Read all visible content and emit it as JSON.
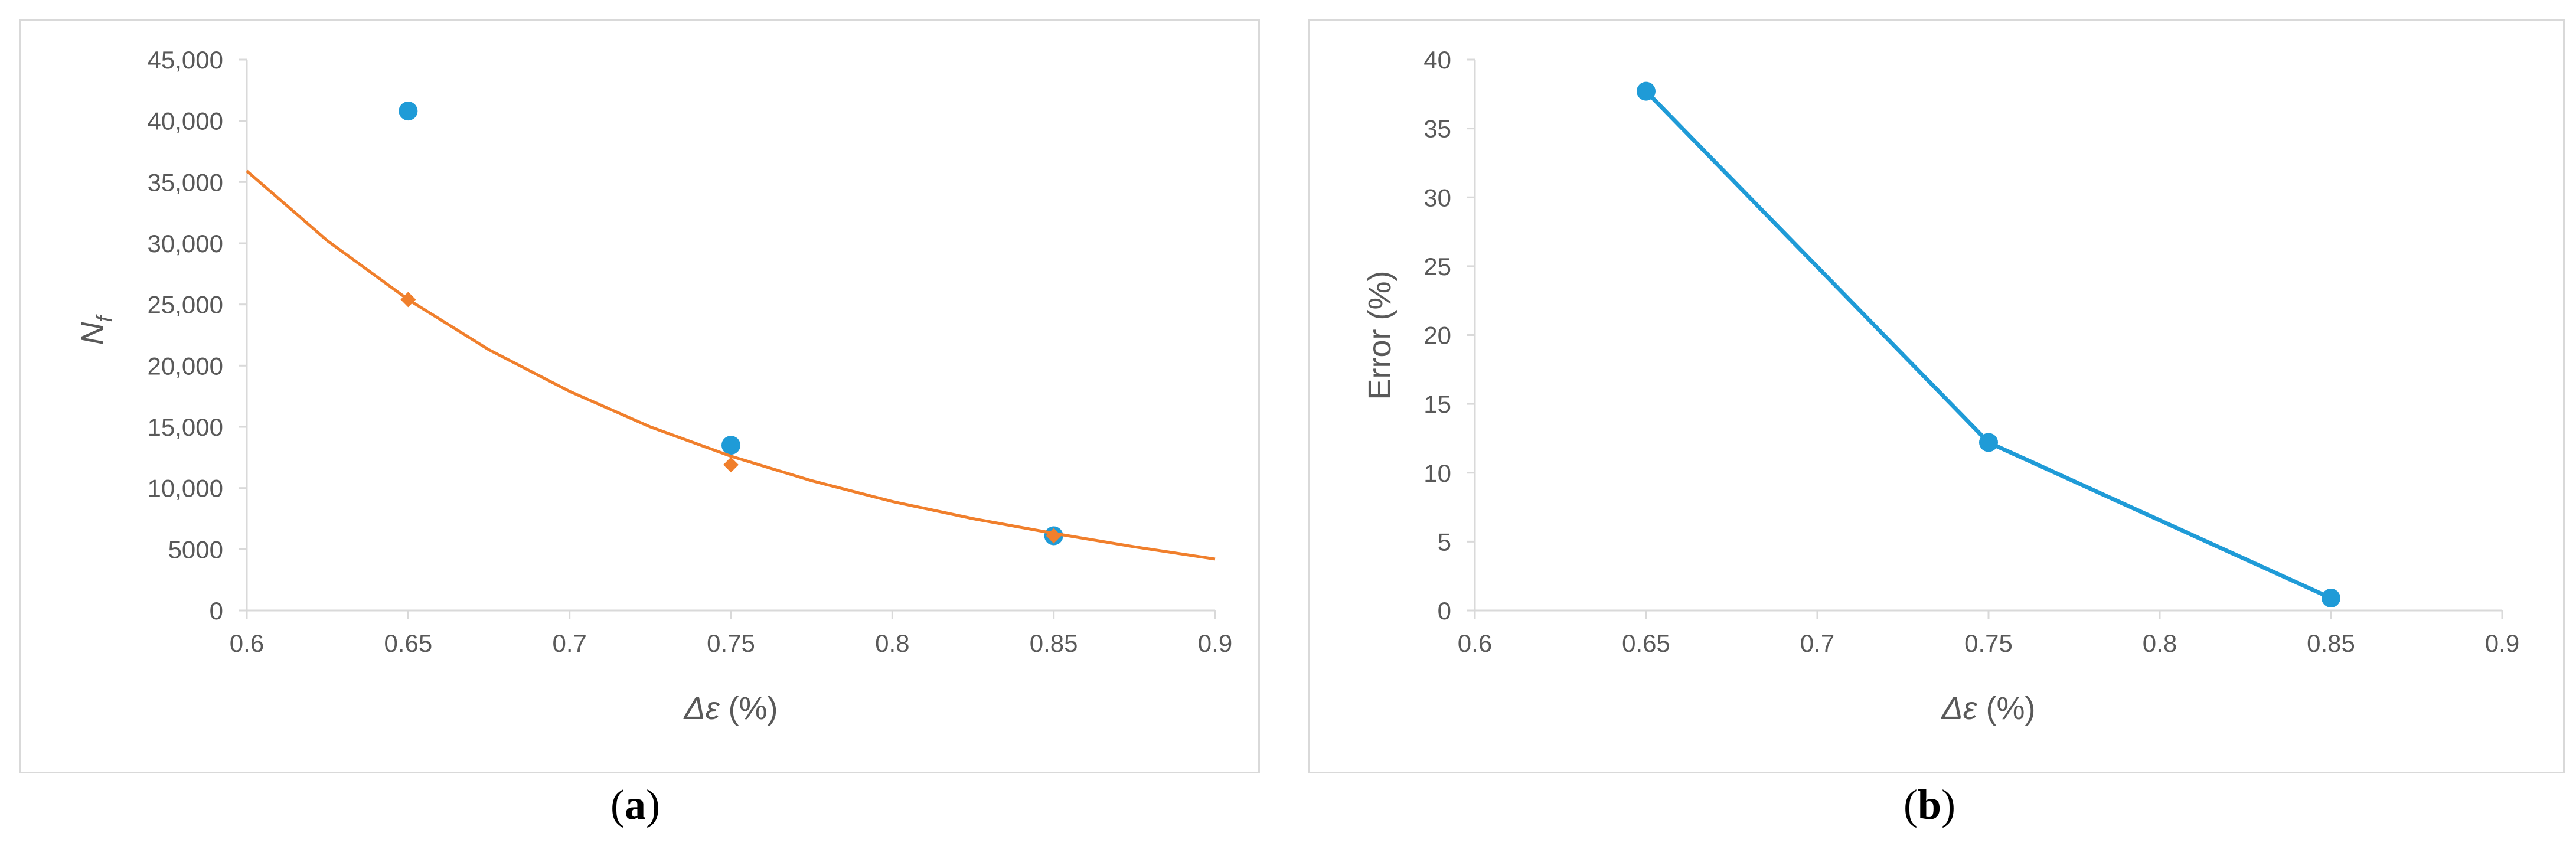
{
  "chart_data": [
    {
      "type": "scatter",
      "panel_label": "a",
      "xlabel_symbol": "Δε",
      "xlabel_unit": " (%)",
      "ylabel_main": "N",
      "ylabel_sub": "f",
      "xlim": [
        0.6,
        0.9
      ],
      "ylim": [
        0,
        45000
      ],
      "x_ticks": [
        0.6,
        0.65,
        0.7,
        0.75,
        0.8,
        0.85,
        0.9
      ],
      "x_tick_labels": [
        "0.6",
        "0.65",
        "0.7",
        "0.75",
        "0.8",
        "0.85",
        "0.9"
      ],
      "y_ticks": [
        0,
        5000,
        10000,
        15000,
        20000,
        25000,
        30000,
        35000,
        40000,
        45000
      ],
      "y_tick_labels": [
        "0",
        "5000",
        "10,000",
        "15,000",
        "20,000",
        "25,000",
        "30,000",
        "35,000",
        "40,000",
        "45,000"
      ],
      "series": [
        {
          "marker": "circle",
          "color": "#1f9bd7",
          "x": [
            0.65,
            0.75,
            0.85
          ],
          "y": [
            40800,
            13500,
            6100
          ]
        },
        {
          "marker": "diamond",
          "color": "#f07f2c",
          "x": [
            0.65,
            0.75,
            0.85
          ],
          "y": [
            25400,
            11900,
            6100
          ]
        },
        {
          "type": "curve",
          "color": "#f07f2c",
          "x": [
            0.6,
            0.625,
            0.65,
            0.675,
            0.7,
            0.725,
            0.75,
            0.775,
            0.8,
            0.825,
            0.85,
            0.875,
            0.9
          ],
          "y": [
            35900,
            30200,
            25400,
            21300,
            17900,
            15000,
            12600,
            10600,
            8900,
            7500,
            6300,
            5200,
            4200
          ]
        }
      ],
      "grid": false,
      "legend": "none"
    },
    {
      "type": "line",
      "panel_label": "b",
      "xlabel_symbol": "Δε",
      "xlabel_unit": " (%)",
      "ylabel": "Error (%)",
      "xlim": [
        0.6,
        0.9
      ],
      "ylim": [
        0,
        40
      ],
      "x_ticks": [
        0.6,
        0.65,
        0.7,
        0.75,
        0.8,
        0.85,
        0.9
      ],
      "x_tick_labels": [
        "0.6",
        "0.65",
        "0.7",
        "0.75",
        "0.8",
        "0.85",
        "0.9"
      ],
      "y_ticks": [
        0,
        5,
        10,
        15,
        20,
        25,
        30,
        35,
        40
      ],
      "y_tick_labels": [
        "0",
        "5",
        "10",
        "15",
        "20",
        "25",
        "30",
        "35",
        "40"
      ],
      "series": [
        {
          "marker": "circle",
          "color": "#1f9bd7",
          "x": [
            0.65,
            0.75,
            0.85
          ],
          "y": [
            37.7,
            12.2,
            0.9
          ]
        }
      ],
      "grid": false,
      "legend": "none"
    }
  ]
}
